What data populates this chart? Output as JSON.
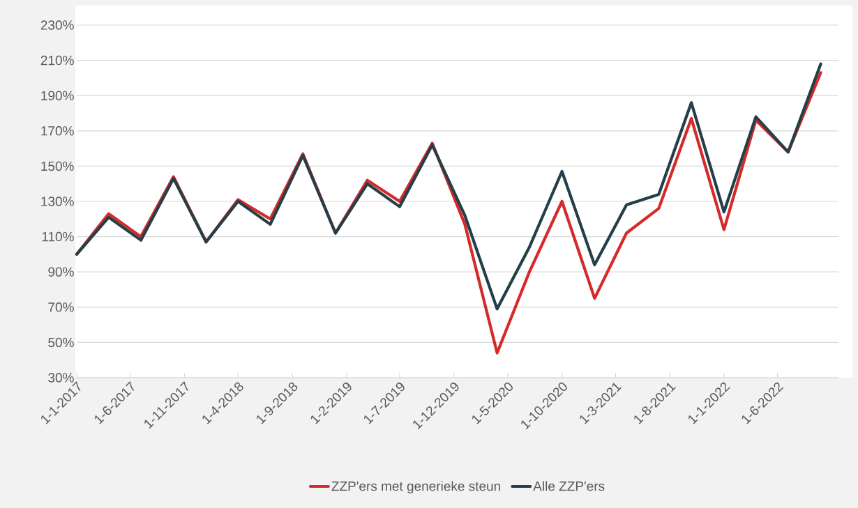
{
  "chart_data": {
    "type": "line",
    "x": [
      "2017-01",
      "2017-04",
      "2017-07",
      "2017-10",
      "2018-01",
      "2018-04",
      "2018-07",
      "2018-10",
      "2019-01",
      "2019-04",
      "2019-07",
      "2019-10",
      "2020-01",
      "2020-04",
      "2020-07",
      "2020-10",
      "2021-01",
      "2021-04",
      "2021-07",
      "2021-10",
      "2022-01",
      "2022-04",
      "2022-07",
      "2022-10"
    ],
    "series": [
      {
        "name": "ZZP'ers met generieke steun",
        "color": "#d42a2a",
        "values": [
          100,
          123,
          110,
          144,
          107,
          131,
          120,
          157,
          112,
          142,
          130,
          163,
          117,
          44,
          90,
          130,
          75,
          112,
          126,
          177,
          114,
          176,
          158,
          203
        ]
      },
      {
        "name": "Alle ZZP'ers",
        "color": "#243f48",
        "values": [
          100,
          121,
          108,
          143,
          107,
          130,
          117,
          156,
          112,
          140,
          127,
          162,
          122,
          69,
          104,
          147,
          94,
          128,
          134,
          186,
          124,
          178,
          158,
          208
        ]
      }
    ],
    "xlim": [
      "2017-01-01",
      "2022-11-20"
    ],
    "xticks": [
      {
        "value": "2017-01-01",
        "label": "1-1-2017"
      },
      {
        "value": "2017-06-01",
        "label": "1-6-2017"
      },
      {
        "value": "2017-11-01",
        "label": "1-11-2017"
      },
      {
        "value": "2018-04-01",
        "label": "1-4-2018"
      },
      {
        "value": "2018-09-01",
        "label": "1-9-2018"
      },
      {
        "value": "2019-02-01",
        "label": "1-2-2019"
      },
      {
        "value": "2019-07-01",
        "label": "1-7-2019"
      },
      {
        "value": "2019-12-01",
        "label": "1-12-2019"
      },
      {
        "value": "2020-05-01",
        "label": "1-5-2020"
      },
      {
        "value": "2020-10-01",
        "label": "1-10-2020"
      },
      {
        "value": "2021-03-01",
        "label": "1-3-2021"
      },
      {
        "value": "2021-08-01",
        "label": "1-8-2021"
      },
      {
        "value": "2022-01-01",
        "label": "1-1-2022"
      },
      {
        "value": "2022-06-01",
        "label": "1-6-2022"
      }
    ],
    "ylim": [
      30,
      230
    ],
    "yticks": [
      {
        "value": 30,
        "label": "30%"
      },
      {
        "value": 50,
        "label": "50%"
      },
      {
        "value": 70,
        "label": "70%"
      },
      {
        "value": 90,
        "label": "90%"
      },
      {
        "value": 110,
        "label": "110%"
      },
      {
        "value": 130,
        "label": "130%"
      },
      {
        "value": 150,
        "label": "150%"
      },
      {
        "value": 170,
        "label": "170%"
      },
      {
        "value": 190,
        "label": "190%"
      },
      {
        "value": 210,
        "label": "210%"
      },
      {
        "value": 230,
        "label": "230%"
      }
    ],
    "grid": "y",
    "legend": "bottom",
    "marker": "none",
    "line_style": "solid"
  }
}
